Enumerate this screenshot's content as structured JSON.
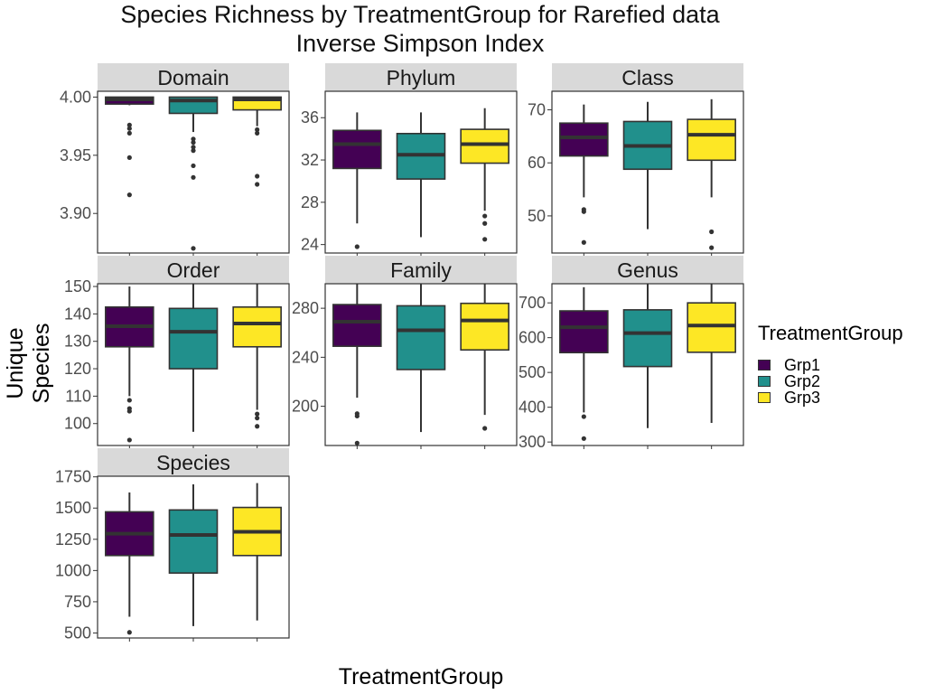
{
  "title": {
    "line1": "Species Richness by TreatmentGroup for Rarefied data",
    "line2": "Inverse Simpson Index"
  },
  "y_axis_label": "Unique Species",
  "x_axis_label": "TreatmentGroup",
  "legend": {
    "title": "TreatmentGroup",
    "placement": "right",
    "items": [
      {
        "label": "Grp1",
        "color": "#440154"
      },
      {
        "label": "Grp2",
        "color": "#21908C"
      },
      {
        "label": "Grp3",
        "color": "#FDE725"
      }
    ]
  },
  "chart_data": {
    "type": "boxplot",
    "groups": [
      "Grp1",
      "Grp2",
      "Grp3"
    ],
    "colors": [
      "#440154",
      "#21908C",
      "#FDE725"
    ],
    "grid": false,
    "facets": [
      {
        "name": "Domain",
        "ylim": [
          3.866,
          4.005
        ],
        "ticks": [
          3.9,
          3.95,
          4.0
        ],
        "tick_labels": [
          "3.90",
          "3.95",
          "4.00"
        ],
        "boxes": [
          {
            "group": "Grp1",
            "whisker_low": 3.993,
            "q1": 3.994,
            "median": 3.998,
            "q3": 4.0,
            "whisker_high": 4.0,
            "outliers": [
              3.976,
              3.973,
              3.969,
              3.948,
              3.916
            ]
          },
          {
            "group": "Grp2",
            "whisker_low": 3.97,
            "q1": 3.986,
            "median": 3.997,
            "q3": 4.0,
            "whisker_high": 4.0,
            "outliers": [
              3.964,
              3.961,
              3.957,
              3.954,
              3.941,
              3.931,
              3.87
            ]
          },
          {
            "group": "Grp3",
            "whisker_low": 3.975,
            "q1": 3.989,
            "median": 3.998,
            "q3": 4.0,
            "whisker_high": 4.0,
            "outliers": [
              3.972,
              3.969,
              3.932,
              3.925
            ]
          }
        ]
      },
      {
        "name": "Phylum",
        "ylim": [
          23.2,
          38.5
        ],
        "ticks": [
          24,
          28,
          32,
          36
        ],
        "tick_labels": [
          "24",
          "28",
          "32",
          "36"
        ],
        "boxes": [
          {
            "group": "Grp1",
            "whisker_low": 26.0,
            "q1": 31.2,
            "median": 33.5,
            "q3": 34.8,
            "whisker_high": 36.5,
            "outliers": [
              23.8
            ]
          },
          {
            "group": "Grp2",
            "whisker_low": 24.7,
            "q1": 30.2,
            "median": 32.5,
            "q3": 34.5,
            "whisker_high": 36.5,
            "outliers": []
          },
          {
            "group": "Grp3",
            "whisker_low": 27.2,
            "q1": 31.7,
            "median": 33.5,
            "q3": 34.9,
            "whisker_high": 36.9,
            "outliers": [
              26.7,
              26.0,
              24.5
            ]
          }
        ]
      },
      {
        "name": "Class",
        "ylim": [
          43.0,
          73.5
        ],
        "ticks": [
          50,
          60,
          70
        ],
        "tick_labels": [
          "50",
          "60",
          "70"
        ],
        "boxes": [
          {
            "group": "Grp1",
            "whisker_low": 53.5,
            "q1": 61.3,
            "median": 64.8,
            "q3": 67.5,
            "whisker_high": 71.0,
            "outliers": [
              51.2,
              50.8,
              45.0
            ]
          },
          {
            "group": "Grp2",
            "whisker_low": 47.5,
            "q1": 58.8,
            "median": 63.2,
            "q3": 67.8,
            "whisker_high": 71.5,
            "outliers": []
          },
          {
            "group": "Grp3",
            "whisker_low": 53.5,
            "q1": 60.5,
            "median": 65.3,
            "q3": 68.2,
            "whisker_high": 72.0,
            "outliers": [
              47.0,
              44.0
            ]
          }
        ]
      },
      {
        "name": "Order",
        "ylim": [
          92.0,
          151.0
        ],
        "ticks": [
          100,
          110,
          120,
          130,
          140,
          150
        ],
        "tick_labels": [
          "100",
          "110",
          "120",
          "130",
          "140",
          "150"
        ],
        "boxes": [
          {
            "group": "Grp1",
            "whisker_low": 110.0,
            "q1": 128.0,
            "median": 135.5,
            "q3": 142.5,
            "whisker_high": 150.0,
            "outliers": [
              108.5,
              105.5,
              104.5,
              94.0
            ]
          },
          {
            "group": "Grp2",
            "whisker_low": 97.0,
            "q1": 120.0,
            "median": 133.5,
            "q3": 142.0,
            "whisker_high": 151.0,
            "outliers": []
          },
          {
            "group": "Grp3",
            "whisker_low": 105.0,
            "q1": 128.0,
            "median": 136.5,
            "q3": 142.5,
            "whisker_high": 151.0,
            "outliers": [
              103.5,
              102.0,
              99.0
            ]
          }
        ]
      },
      {
        "name": "Family",
        "ylim": [
          168.0,
          300.0
        ],
        "ticks": [
          200,
          240,
          280
        ],
        "tick_labels": [
          "200",
          "240",
          "280"
        ],
        "boxes": [
          {
            "group": "Grp1",
            "whisker_low": 207.0,
            "q1": 249.0,
            "median": 269.0,
            "q3": 283.0,
            "whisker_high": 300.0,
            "outliers": [
              194.0,
              192.0,
              170.0
            ]
          },
          {
            "group": "Grp2",
            "whisker_low": 179.0,
            "q1": 230.0,
            "median": 262.0,
            "q3": 282.0,
            "whisker_high": 300.0,
            "outliers": []
          },
          {
            "group": "Grp3",
            "whisker_low": 193.0,
            "q1": 246.0,
            "median": 270.0,
            "q3": 284.0,
            "whisker_high": 300.0,
            "outliers": [
              182.0
            ]
          }
        ]
      },
      {
        "name": "Genus",
        "ylim": [
          290.0,
          755.0
        ],
        "ticks": [
          300,
          400,
          500,
          600,
          700
        ],
        "tick_labels": [
          "300",
          "400",
          "500",
          "600",
          "700"
        ],
        "boxes": [
          {
            "group": "Grp1",
            "whisker_low": 385.0,
            "q1": 557.0,
            "median": 630.0,
            "q3": 677.0,
            "whisker_high": 745.0,
            "outliers": [
              373.0,
              310.0
            ]
          },
          {
            "group": "Grp2",
            "whisker_low": 340.0,
            "q1": 517.0,
            "median": 613.0,
            "q3": 680.0,
            "whisker_high": 755.0,
            "outliers": []
          },
          {
            "group": "Grp3",
            "whisker_low": 355.0,
            "q1": 558.0,
            "median": 635.0,
            "q3": 700.0,
            "whisker_high": 755.0,
            "outliers": []
          }
        ]
      },
      {
        "name": "Species",
        "ylim": [
          460.0,
          1755.0
        ],
        "ticks": [
          500,
          750,
          1000,
          1250,
          1500,
          1750
        ],
        "tick_labels": [
          "500",
          "750",
          "1000",
          "1250",
          "1500",
          "1750"
        ],
        "boxes": [
          {
            "group": "Grp1",
            "whisker_low": 630.0,
            "q1": 1120.0,
            "median": 1295.0,
            "q3": 1470.0,
            "whisker_high": 1625.0,
            "outliers": [
              505.0
            ]
          },
          {
            "group": "Grp2",
            "whisker_low": 555.0,
            "q1": 980.0,
            "median": 1285.0,
            "q3": 1485.0,
            "whisker_high": 1690.0,
            "outliers": []
          },
          {
            "group": "Grp3",
            "whisker_low": 600.0,
            "q1": 1120.0,
            "median": 1310.0,
            "q3": 1505.0,
            "whisker_high": 1700.0,
            "outliers": []
          }
        ]
      }
    ]
  }
}
